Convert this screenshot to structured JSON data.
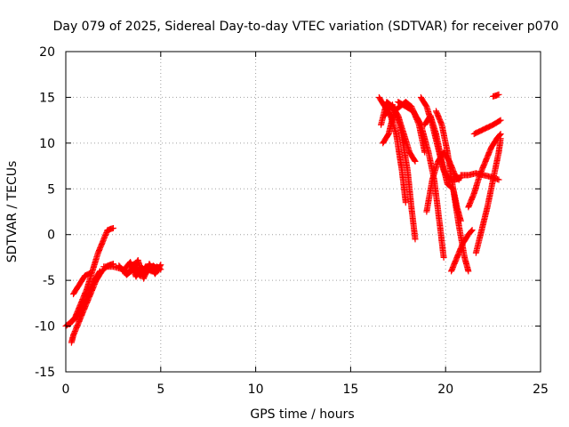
{
  "chart_data": {
    "type": "scatter",
    "title": "Day 079 of 2025, Sidereal Day-to-day VTEC variation (SDTVAR) for receiver p070",
    "xlabel": "GPS time / hours",
    "ylabel": "SDTVAR / TECUs",
    "xlim": [
      0,
      25
    ],
    "ylim": [
      -15,
      20
    ],
    "x_ticks": [
      "0",
      "5",
      "10",
      "15",
      "20",
      "25"
    ],
    "y_ticks": [
      "-15",
      "-10",
      "-5",
      "0",
      "5",
      "10",
      "15",
      "20"
    ],
    "grid": true,
    "marker": "+",
    "color": "#ff0000",
    "series": [
      {
        "x": [
          0.0,
          0.3,
          0.6,
          0.9,
          1.2,
          1.5,
          1.8
        ],
        "y": [
          -10.0,
          -9.5,
          -9.0,
          -8.0,
          -6.5,
          -5.0,
          -4.0
        ]
      },
      {
        "x": [
          0.2,
          0.5,
          0.8,
          1.1,
          1.4,
          1.7,
          2.0,
          2.2,
          2.5
        ],
        "y": [
          -9.8,
          -9.0,
          -7.5,
          -6.0,
          -4.0,
          -2.0,
          -0.5,
          0.5,
          0.7
        ]
      },
      {
        "x": [
          0.3,
          0.4,
          0.7,
          1.0,
          1.3,
          1.6,
          1.9,
          2.2,
          2.5
        ],
        "y": [
          -11.8,
          -11.0,
          -9.5,
          -8.0,
          -6.5,
          -5.0,
          -4.0,
          -3.4,
          -3.2
        ]
      },
      {
        "x": [
          0.4,
          0.7,
          1.0,
          1.3
        ],
        "y": [
          -6.5,
          -5.5,
          -4.5,
          -4.2
        ]
      },
      {
        "x": [
          2.0,
          2.5,
          3.0,
          3.3,
          3.6,
          3.9,
          4.2,
          4.5,
          4.8,
          5.0
        ],
        "y": [
          -3.5,
          -3.5,
          -3.8,
          -4.2,
          -3.2,
          -4.5,
          -3.5,
          -4.0,
          -3.5,
          -3.8
        ]
      },
      {
        "x": [
          2.8,
          3.2,
          3.5,
          3.8,
          4.1,
          4.4,
          4.7,
          5.0
        ],
        "y": [
          -3.4,
          -4.4,
          -3.9,
          -2.8,
          -4.8,
          -3.2,
          -4.3,
          -3.3
        ]
      },
      {
        "x": [
          3.0,
          3.4,
          3.7,
          4.0,
          4.3,
          4.6,
          4.9
        ],
        "y": [
          -4.0,
          -3.0,
          -4.6,
          -3.6,
          -4.1,
          -3.4,
          -3.9
        ]
      },
      {
        "x": [
          16.5,
          16.8,
          17.1,
          17.4,
          17.7,
          17.9
        ],
        "y": [
          15.0,
          14.0,
          13.0,
          11.0,
          7.0,
          3.5
        ]
      },
      {
        "x": [
          16.6,
          16.9,
          17.2,
          17.5,
          17.8,
          18.1,
          18.4
        ],
        "y": [
          12.0,
          14.5,
          14.0,
          13.0,
          11.0,
          9.0,
          8.0
        ]
      },
      {
        "x": [
          16.7,
          17.0,
          17.3,
          17.6,
          17.9,
          18.2,
          18.6,
          18.9
        ],
        "y": [
          10.0,
          11.0,
          13.5,
          14.0,
          14.5,
          14.0,
          12.0,
          9.0
        ]
      },
      {
        "x": [
          16.8,
          17.2,
          17.6,
          18.0,
          18.2,
          18.4
        ],
        "y": [
          13.0,
          14.2,
          12.0,
          7.0,
          3.0,
          -0.5
        ]
      },
      {
        "x": [
          17.5,
          17.9,
          18.3,
          18.7,
          19.1,
          19.4,
          19.7,
          19.9
        ],
        "y": [
          14.5,
          14.0,
          13.5,
          12.0,
          9.0,
          6.0,
          1.0,
          -2.5
        ]
      },
      {
        "x": [
          18.7,
          19.0,
          19.3,
          19.6,
          19.9,
          20.2,
          20.5,
          20.8
        ],
        "y": [
          15.0,
          14.0,
          12.0,
          9.5,
          7.0,
          6.0,
          6.0,
          6.2
        ]
      },
      {
        "x": [
          18.9,
          19.2,
          19.5,
          19.8,
          20.1,
          20.4,
          20.6,
          20.8
        ],
        "y": [
          12.0,
          13.0,
          11.0,
          8.0,
          5.5,
          5.0,
          3.0,
          1.5
        ]
      },
      {
        "x": [
          19.0,
          19.3,
          19.6,
          19.9,
          20.2,
          20.5,
          20.7
        ],
        "y": [
          2.5,
          6.0,
          8.0,
          9.0,
          8.0,
          6.5,
          6.0
        ]
      },
      {
        "x": [
          19.5,
          19.8,
          20.1,
          20.4,
          20.7,
          21.0,
          21.2
        ],
        "y": [
          13.5,
          12.0,
          9.0,
          5.0,
          1.0,
          -2.5,
          -4.0
        ]
      },
      {
        "x": [
          20.3,
          20.6,
          20.9,
          21.2,
          21.4
        ],
        "y": [
          -4.0,
          -2.5,
          -1.0,
          0.0,
          0.5
        ]
      },
      {
        "x": [
          20.8,
          21.2,
          21.6,
          22.0,
          22.4,
          22.8
        ],
        "y": [
          6.5,
          6.5,
          6.7,
          6.5,
          6.3,
          6.0
        ]
      },
      {
        "x": [
          21.2,
          21.5,
          21.8,
          22.1,
          22.4,
          22.7,
          22.9
        ],
        "y": [
          3.0,
          4.5,
          6.5,
          8.0,
          9.5,
          10.5,
          11.0
        ]
      },
      {
        "x": [
          21.6,
          21.9,
          22.2,
          22.5,
          22.8,
          22.9
        ],
        "y": [
          -2.0,
          0.5,
          3.0,
          6.0,
          9.0,
          10.5
        ]
      },
      {
        "x": [
          21.5,
          22.0,
          22.5,
          22.9
        ],
        "y": [
          11.0,
          11.5,
          12.0,
          12.5
        ]
      },
      {
        "x": [
          22.5,
          22.8
        ],
        "y": [
          15.1,
          15.3
        ]
      }
    ]
  }
}
